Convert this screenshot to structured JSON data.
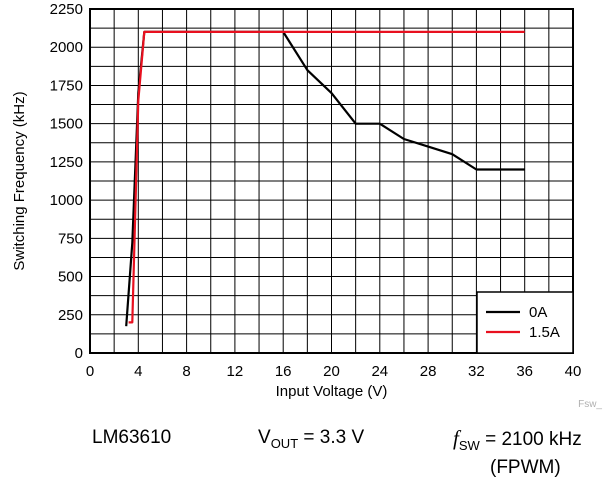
{
  "chart_data": {
    "type": "line",
    "xlabel": "Input Voltage (V)",
    "ylabel": "Switching Frequency (kHz)",
    "xlim": [
      0,
      40
    ],
    "ylim": [
      0,
      2250
    ],
    "x_ticks": [
      0,
      4,
      8,
      12,
      16,
      20,
      24,
      28,
      32,
      36,
      40
    ],
    "y_ticks": [
      0,
      250,
      500,
      750,
      1000,
      1250,
      1500,
      1750,
      2000,
      2250
    ],
    "x_minor_step": 2,
    "y_minor_step": 125,
    "grid": true,
    "legend_position": "bottom-right",
    "series": [
      {
        "name": "0A",
        "color": "#000000",
        "points": [
          [
            3.0,
            175
          ],
          [
            3.5,
            720
          ],
          [
            4.0,
            1700
          ],
          [
            4.5,
            2100
          ],
          [
            16,
            2100
          ],
          [
            18,
            1850
          ],
          [
            20,
            1700
          ],
          [
            22,
            1500
          ],
          [
            24,
            1500
          ],
          [
            26,
            1400
          ],
          [
            28,
            1350
          ],
          [
            30,
            1300
          ],
          [
            32,
            1200
          ],
          [
            36,
            1200
          ]
        ]
      },
      {
        "name": "1.5A",
        "color": "#e8101f",
        "points": [
          [
            3.2,
            200
          ],
          [
            3.5,
            200
          ],
          [
            4.0,
            1650
          ],
          [
            4.5,
            2100
          ],
          [
            36,
            2100
          ]
        ]
      }
    ],
    "code_label": "Fsw_"
  },
  "caption": {
    "device": "LM63610",
    "vout_main": "V",
    "vout_sub": "OUT",
    "vout_value": " = 3.3 V",
    "fsw_symbol": "f",
    "fsw_sub": "SW",
    "fsw_value": " = 2100 kHz",
    "mode": "(FPWM)"
  }
}
